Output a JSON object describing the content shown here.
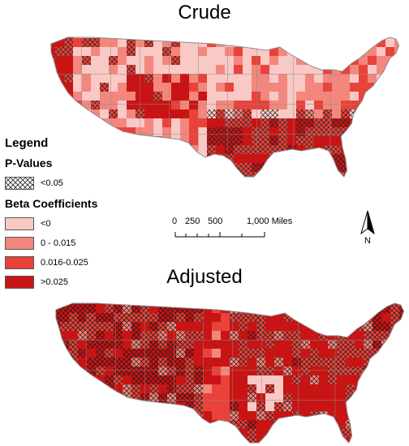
{
  "titles": {
    "crude": "Crude",
    "adjusted": "Adjusted"
  },
  "legend": {
    "heading": "Legend",
    "pvalues_heading": "P-Values",
    "pvalue_item": {
      "label": "<0.05",
      "pattern": "crosshatch"
    },
    "beta_heading": "Beta Coefficients",
    "beta_items": [
      {
        "label": "<0",
        "color": "#f9c9c6"
      },
      {
        "label": "0 - 0.015",
        "color": "#f3877d"
      },
      {
        "label": "0.016-0.025",
        "color": "#e8423a"
      },
      {
        "label": ">0.025",
        "color": "#c81414"
      }
    ]
  },
  "scale": {
    "ticks": [
      "0",
      "250",
      "500",
      "1,000 Miles"
    ]
  },
  "north_label": "N",
  "colors": {
    "lt0": "#f9c9c6",
    "b0_015": "#f3877d",
    "b016_025": "#e8423a",
    "gt025": "#c81414",
    "state_border": "#8a8a8a"
  }
}
